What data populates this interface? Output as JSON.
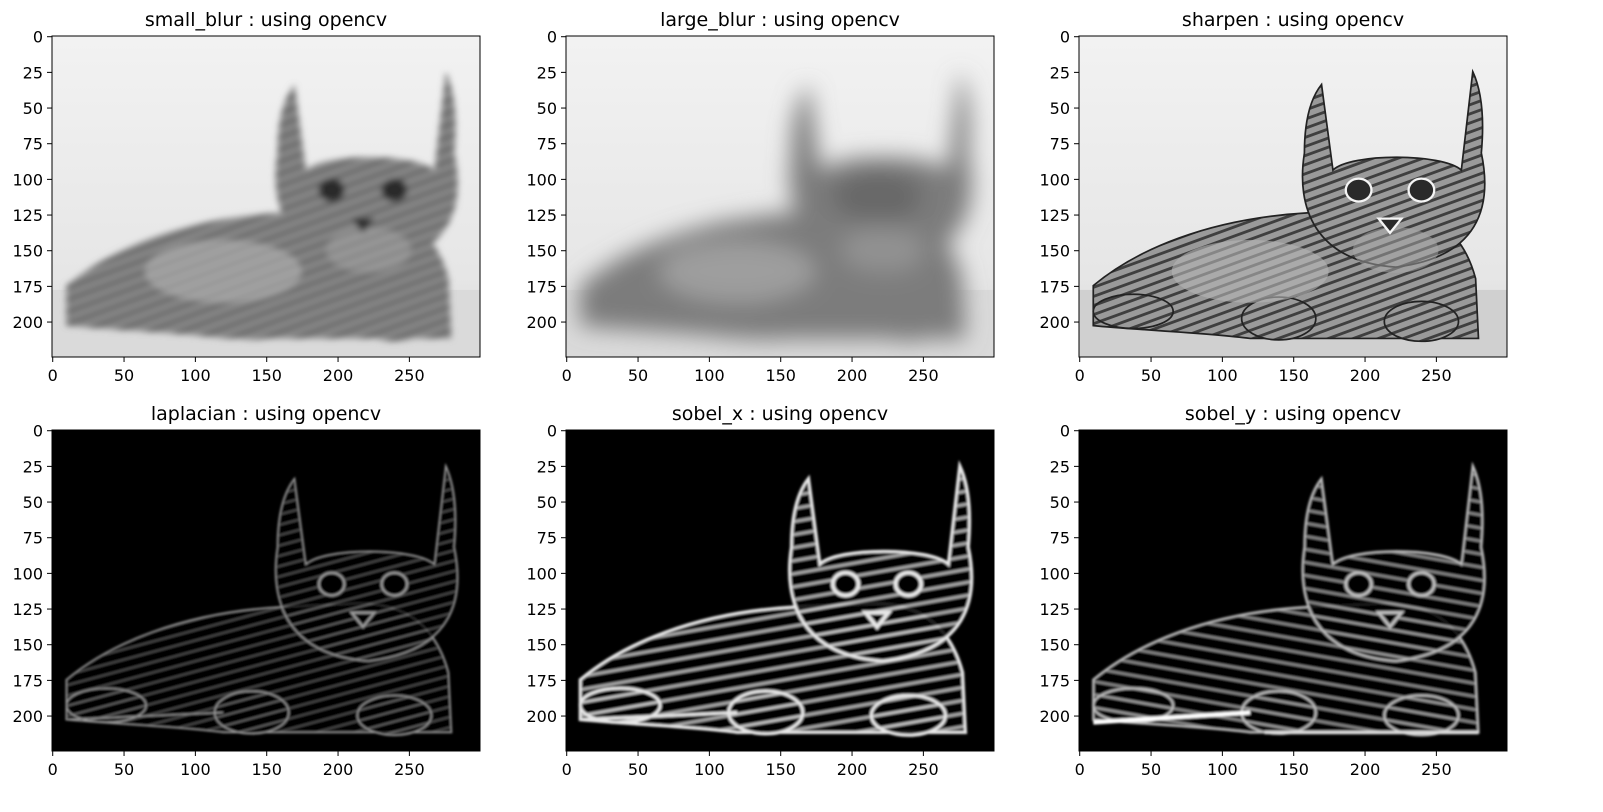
{
  "panels": [
    {
      "title": "small_blur : using opencv",
      "filter": "small_blur",
      "x_ticks": [
        "0",
        "50",
        "100",
        "150",
        "200",
        "250"
      ],
      "y_ticks": [
        "0",
        "25",
        "50",
        "75",
        "100",
        "125",
        "150",
        "175",
        "200"
      ]
    },
    {
      "title": "large_blur : using opencv",
      "filter": "large_blur",
      "x_ticks": [
        "0",
        "50",
        "100",
        "150",
        "200",
        "250"
      ],
      "y_ticks": [
        "0",
        "25",
        "50",
        "75",
        "100",
        "125",
        "150",
        "175",
        "200"
      ]
    },
    {
      "title": "sharpen : using opencv",
      "filter": "sharpen",
      "x_ticks": [
        "0",
        "50",
        "100",
        "150",
        "200",
        "250"
      ],
      "y_ticks": [
        "0",
        "25",
        "50",
        "75",
        "100",
        "125",
        "150",
        "175",
        "200"
      ]
    },
    {
      "title": "laplacian : using opencv",
      "filter": "laplacian",
      "x_ticks": [
        "0",
        "50",
        "100",
        "150",
        "200",
        "250"
      ],
      "y_ticks": [
        "0",
        "25",
        "50",
        "75",
        "100",
        "125",
        "150",
        "175",
        "200"
      ]
    },
    {
      "title": "sobel_x : using opencv",
      "filter": "sobel_x",
      "x_ticks": [
        "0",
        "50",
        "100",
        "150",
        "200",
        "250"
      ],
      "y_ticks": [
        "0",
        "25",
        "50",
        "75",
        "100",
        "125",
        "150",
        "175",
        "200"
      ]
    },
    {
      "title": "sobel_y : using opencv",
      "filter": "sobel_y",
      "x_ticks": [
        "0",
        "50",
        "100",
        "150",
        "200",
        "250"
      ],
      "y_ticks": [
        "0",
        "25",
        "50",
        "75",
        "100",
        "125",
        "150",
        "175",
        "200"
      ]
    }
  ],
  "image_content": "kitten-lying-down"
}
